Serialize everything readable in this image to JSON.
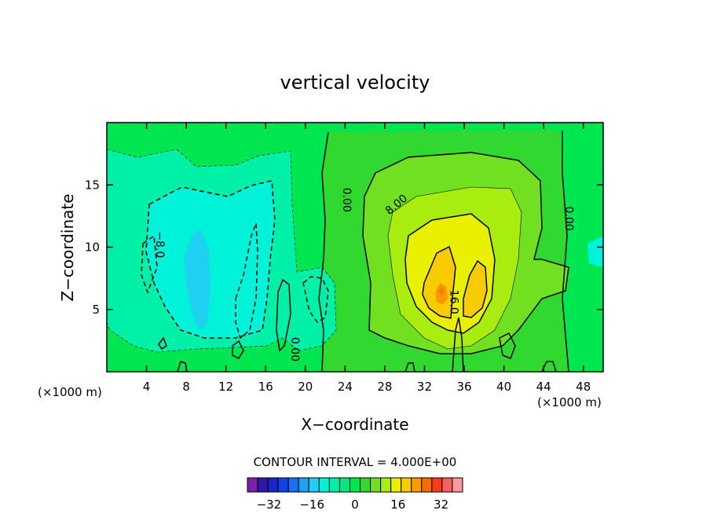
{
  "chart_data": {
    "type": "heatmap",
    "subtype": "filled-contour",
    "title": "vertical velocity",
    "xlabel": "X−coordinate",
    "ylabel": "Z−coordinate",
    "x_unit_left": "(×1000 m)",
    "x_unit_right": "(×1000 m)",
    "xlim": [
      0,
      50
    ],
    "ylim": [
      0,
      20
    ],
    "x_ticks": [
      4,
      8,
      12,
      16,
      20,
      24,
      28,
      32,
      36,
      40,
      44,
      48
    ],
    "y_ticks": [
      5,
      10,
      15
    ],
    "contour_interval_label": "CONTOUR INTERVAL = 4.000E+00",
    "contour_interval": 4,
    "contour_labels": [
      {
        "text": "−8.0",
        "x": 5,
        "y": 10.2
      },
      {
        "text": "0.00",
        "x": 23.8,
        "y": 13.8
      },
      {
        "text": "8.00",
        "x": 29.4,
        "y": 13.2
      },
      {
        "text": "0.00",
        "x": 46.2,
        "y": 12.3
      },
      {
        "text": "0.00",
        "x": 18.6,
        "y": 1.8
      },
      {
        "text": "16.0",
        "x": 34.6,
        "y": 5.6
      }
    ],
    "colorbar": {
      "tick_labels": [
        "−32",
        "−16",
        "0",
        "16",
        "32"
      ],
      "levels": [
        -40,
        -36,
        -32,
        -28,
        -24,
        -20,
        -16,
        -12,
        -8,
        -4,
        0,
        4,
        8,
        12,
        16,
        20,
        24,
        28,
        32,
        36,
        40
      ],
      "colors": [
        "#7b1ea8",
        "#2e17a6",
        "#1a25c8",
        "#1242e6",
        "#1470f5",
        "#1ea0f5",
        "#1fd0f0",
        "#00f2d8",
        "#00f0a8",
        "#00e880",
        "#00e650",
        "#30d830",
        "#70e020",
        "#a8ec10",
        "#e8f000",
        "#f8cc00",
        "#f89a00",
        "#f86a00",
        "#f83a20",
        "#f86060",
        "#f89aa0"
      ]
    },
    "grid": false
  }
}
